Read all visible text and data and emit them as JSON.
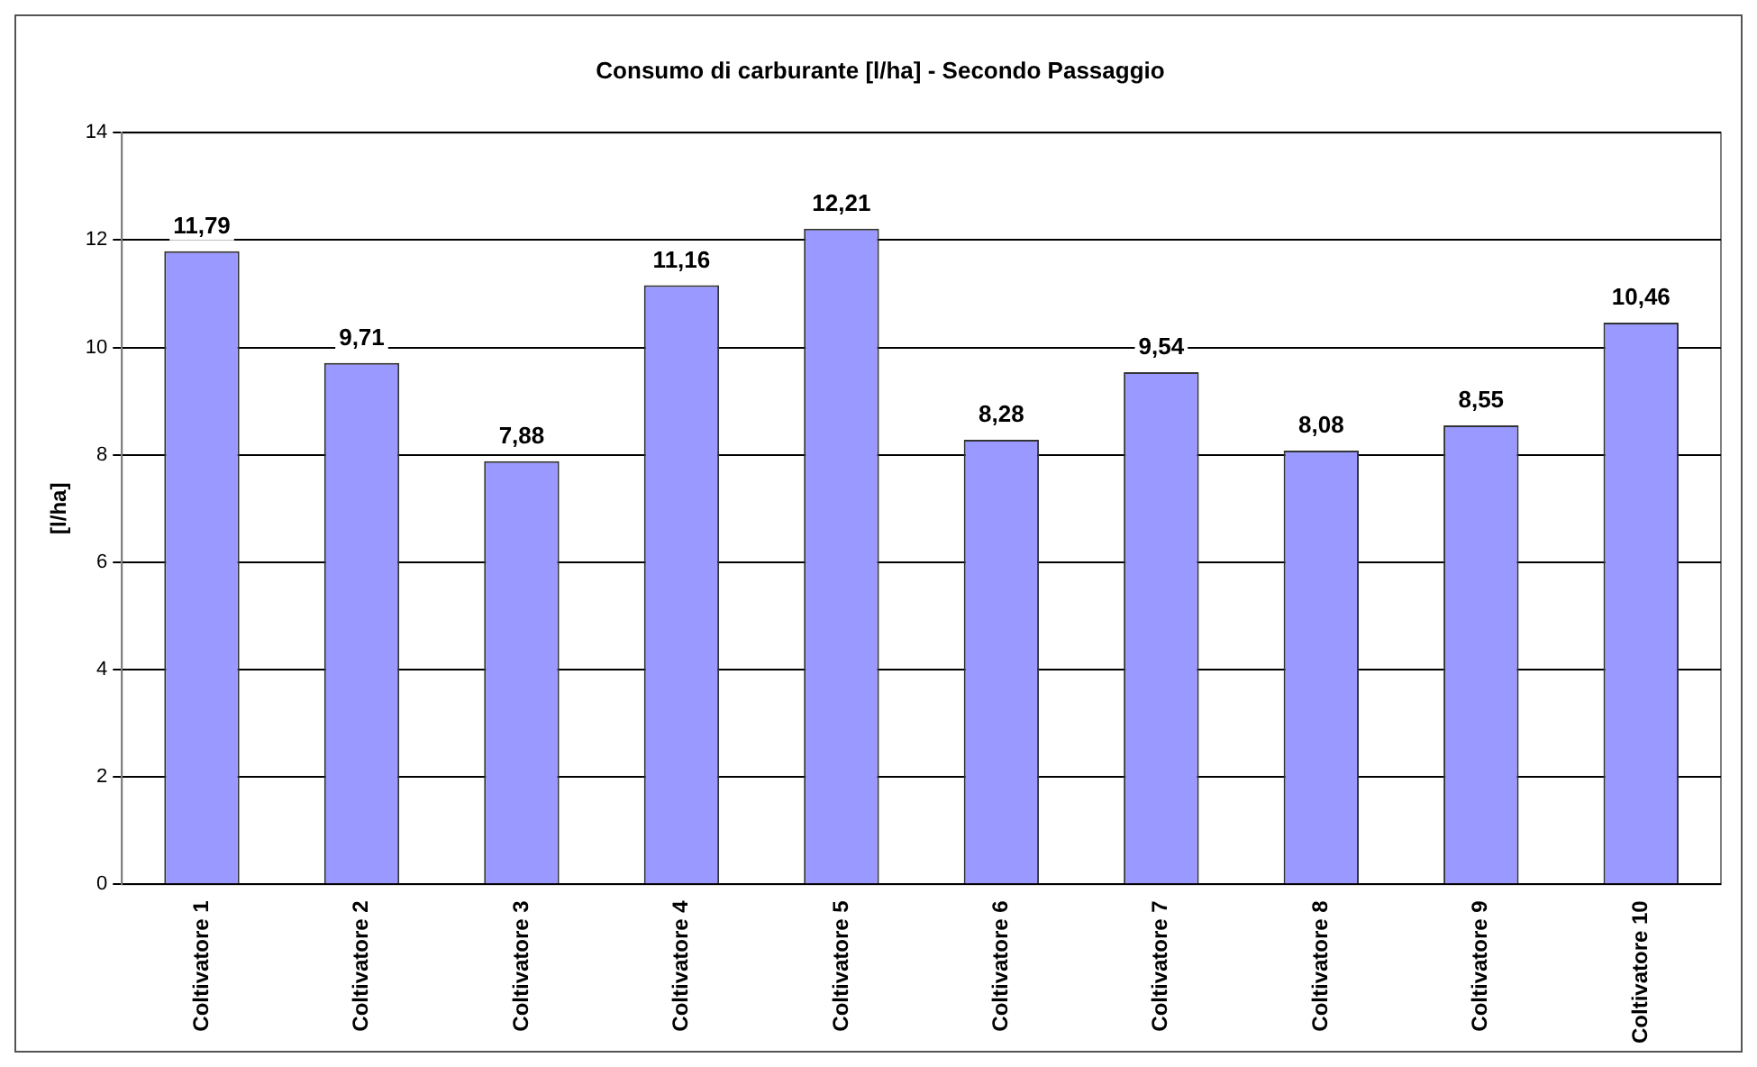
{
  "chart_data": {
    "type": "bar",
    "title": "Consumo di carburante [l/ha] - Secondo Passaggio",
    "ylabel": "[l/ha]",
    "categories": [
      "Coltivatore 1",
      "Coltivatore 2",
      "Coltivatore 3",
      "Coltivatore 4",
      "Coltivatore 5",
      "Coltivatore 6",
      "Coltivatore 7",
      "Coltivatore 8",
      "Coltivatore 9",
      "Coltivatore 10"
    ],
    "values": [
      11.79,
      9.71,
      7.88,
      11.16,
      12.21,
      8.28,
      9.54,
      8.08,
      8.55,
      10.46
    ],
    "color": "#9999ff",
    "ylim": [
      0,
      14
    ],
    "yticks": [
      0,
      2,
      4,
      6,
      8,
      10,
      12,
      14
    ],
    "value_labels": [
      "11,79",
      "9,71",
      "7,88",
      "11,16",
      "12,21",
      "8,28",
      "9,54",
      "8,08",
      "8,55",
      "10,46"
    ],
    "grid": "y",
    "legend": false
  }
}
